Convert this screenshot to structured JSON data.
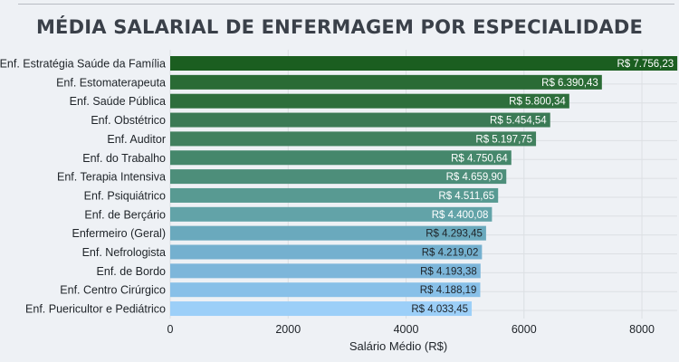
{
  "chart_data": {
    "type": "bar",
    "orientation": "horizontal",
    "title": "MÉDIA SALARIAL DE ENFERMAGEM POR ESPECIALIDADE",
    "xlabel": "Salário Médio (R$)",
    "ylabel": "",
    "xlim": [
      0,
      8600
    ],
    "xticks": [
      0,
      2000,
      4000,
      6000,
      8000
    ],
    "grid": true,
    "categories": [
      "Enf. Estratégia Saúde da Família",
      "Enf. Estomaterapeuta",
      "Enf. Saúde Pública",
      "Enf. Obstétrico",
      "Enf. Auditor",
      "Enf. do Trabalho",
      "Enf. Terapia Intensiva",
      "Enf. Psiquiátrico",
      "Enf. de Berçário",
      "Enfermeiro (Geral)",
      "Enf. Nefrologista",
      "Enf. de Bordo",
      "Enf. Centro Cirúrgico",
      "Enf. Puericultor e Pediátrico"
    ],
    "values": [
      7756.23,
      6390.43,
      5800.34,
      5454.54,
      5197.75,
      4750.64,
      4659.9,
      4511.65,
      4400.08,
      4293.45,
      4219.02,
      4193.38,
      4188.19,
      4033.45
    ],
    "value_labels": [
      "R$ 7.756,23",
      "R$ 6.390,43",
      "R$ 5.800,34",
      "R$ 5.454,54",
      "R$ 5.197,75",
      "R$ 4.750,64",
      "R$ 4.659,90",
      "R$ 4.511,65",
      "R$ 4.400,08",
      "R$ 4.293,45",
      "R$ 4.219,02",
      "R$ 4.193,38",
      "R$ 4.188,19",
      "R$ 4.033,45"
    ],
    "colors": [
      "#1b5e20",
      "#2a6b35",
      "#2e6e3c",
      "#3b7a55",
      "#41805e",
      "#45876b",
      "#4d8e7a",
      "#589a92",
      "#62a3a8",
      "#6aa9bd",
      "#74b0cf",
      "#7db6da",
      "#88c0e8",
      "#9ccff8"
    ]
  }
}
